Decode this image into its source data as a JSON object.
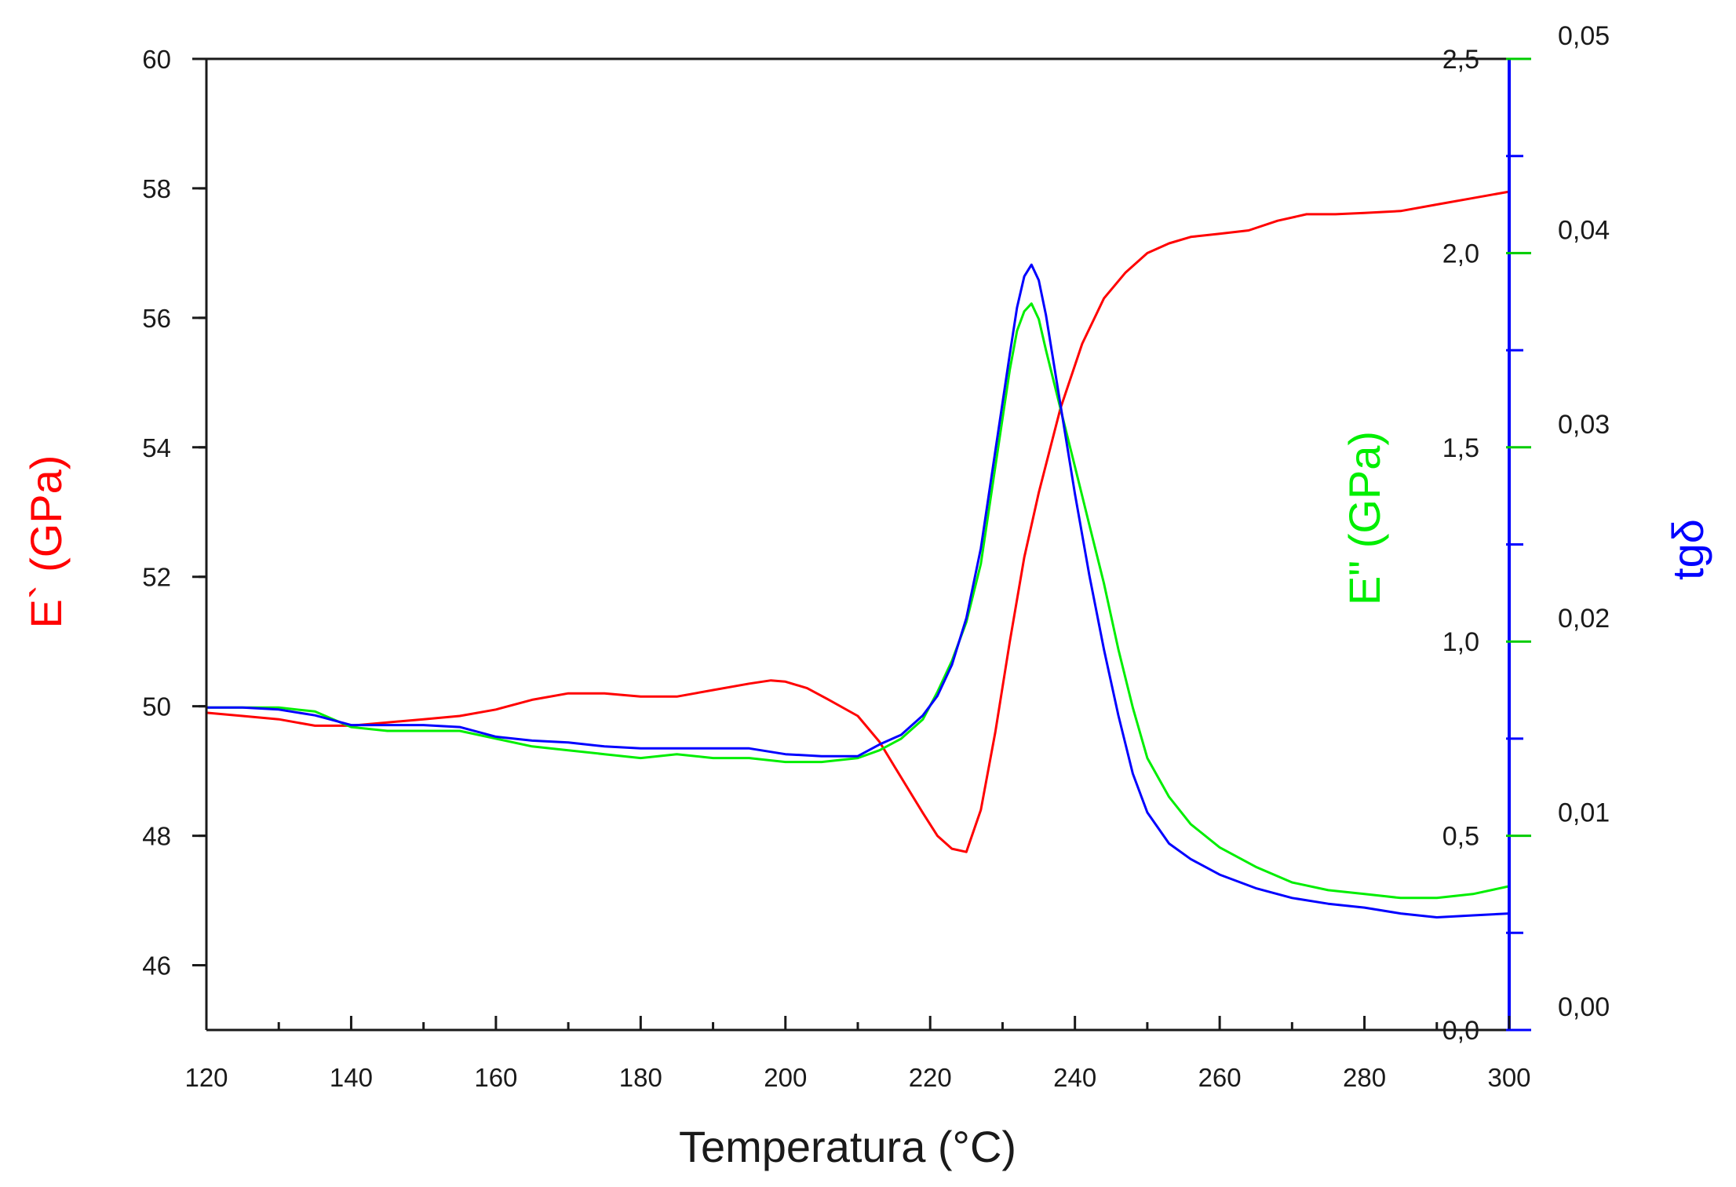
{
  "chart_data": {
    "type": "line",
    "xlabel": "Temperatura (°C)",
    "x_axis": {
      "min": 120,
      "max": 300,
      "ticks": [
        120,
        140,
        160,
        180,
        200,
        220,
        240,
        260,
        280,
        300
      ],
      "tick_labels": [
        "120",
        "140",
        "160",
        "180",
        "200",
        "220",
        "240",
        "260",
        "280",
        "300"
      ]
    },
    "y_axes": [
      {
        "id": "storage",
        "label": "E` (GPa)",
        "color": "#ff0000",
        "side": "left",
        "min": 45,
        "max": 60,
        "ticks": [
          46,
          48,
          50,
          52,
          54,
          56,
          58,
          60
        ],
        "tick_labels": [
          "46",
          "48",
          "50",
          "52",
          "54",
          "56",
          "58",
          "60"
        ]
      },
      {
        "id": "loss",
        "label": "E\" (GPa)",
        "color": "#00ee00",
        "side": "right-inner",
        "min": 0,
        "max": 2.5,
        "ticks": [
          0,
          0.5,
          1.0,
          1.5,
          2.0,
          2.5
        ],
        "tick_labels": [
          "0,0",
          "0,5",
          "1,0",
          "1,5",
          "2,0",
          "2,5"
        ]
      },
      {
        "id": "tan",
        "label": "tgδ",
        "color": "#0000ff",
        "side": "right",
        "min": 0,
        "max": 0.05,
        "ticks": [
          0,
          0.01,
          0.02,
          0.03,
          0.04,
          0.05
        ],
        "tick_labels": [
          "0,00",
          "0,01",
          "0,02",
          "0,03",
          "0,04",
          "0,05"
        ]
      }
    ],
    "series": [
      {
        "name": "E`",
        "axis": "storage",
        "color": "#ff0000",
        "x": [
          120,
          125,
          130,
          135,
          140,
          145,
          150,
          155,
          160,
          165,
          170,
          175,
          180,
          185,
          190,
          195,
          198,
          200,
          203,
          206,
          210,
          213,
          216,
          219,
          221,
          223,
          225,
          227,
          229,
          231,
          233,
          235,
          238,
          241,
          244,
          247,
          250,
          253,
          256,
          260,
          264,
          268,
          272,
          276,
          280,
          285,
          290,
          295,
          300
        ],
        "y": [
          49.9,
          49.85,
          49.8,
          49.7,
          49.7,
          49.75,
          49.8,
          49.85,
          49.95,
          50.1,
          50.2,
          50.2,
          50.15,
          50.15,
          50.25,
          50.35,
          50.4,
          50.38,
          50.28,
          50.1,
          49.85,
          49.45,
          48.9,
          48.35,
          48.0,
          47.8,
          47.75,
          48.4,
          49.6,
          51.0,
          52.3,
          53.3,
          54.6,
          55.6,
          56.3,
          56.7,
          57.0,
          57.15,
          57.25,
          57.3,
          57.35,
          57.5,
          57.6,
          57.6,
          57.62,
          57.65,
          57.75,
          57.85,
          57.95
        ]
      },
      {
        "name": "E\"",
        "axis": "loss",
        "color": "#00ee00",
        "x": [
          120,
          125,
          130,
          135,
          140,
          145,
          150,
          155,
          160,
          165,
          170,
          175,
          180,
          185,
          190,
          195,
          200,
          205,
          210,
          213,
          216,
          219,
          221,
          223,
          225,
          227,
          229,
          231,
          232,
          233,
          234,
          235,
          236,
          238,
          240,
          242,
          244,
          246,
          248,
          250,
          253,
          256,
          260,
          265,
          270,
          275,
          280,
          285,
          290,
          295,
          300
        ],
        "y": [
          0.83,
          0.83,
          0.83,
          0.82,
          0.78,
          0.77,
          0.77,
          0.77,
          0.75,
          0.73,
          0.72,
          0.71,
          0.7,
          0.71,
          0.7,
          0.7,
          0.69,
          0.69,
          0.7,
          0.72,
          0.75,
          0.8,
          0.87,
          0.95,
          1.05,
          1.2,
          1.45,
          1.7,
          1.8,
          1.85,
          1.87,
          1.83,
          1.75,
          1.6,
          1.45,
          1.3,
          1.15,
          0.98,
          0.83,
          0.7,
          0.6,
          0.53,
          0.47,
          0.42,
          0.38,
          0.36,
          0.35,
          0.34,
          0.34,
          0.35,
          0.37
        ]
      },
      {
        "name": "tgδ",
        "axis": "tan",
        "color": "#0000ff",
        "x": [
          120,
          125,
          130,
          135,
          140,
          145,
          150,
          155,
          160,
          165,
          170,
          175,
          180,
          185,
          190,
          195,
          200,
          205,
          210,
          213,
          216,
          219,
          221,
          223,
          225,
          227,
          229,
          231,
          232,
          233,
          234,
          235,
          236,
          238,
          240,
          242,
          244,
          246,
          248,
          250,
          253,
          256,
          260,
          265,
          270,
          275,
          280,
          285,
          290,
          295,
          300
        ],
        "y": [
          0.0166,
          0.0166,
          0.0165,
          0.0162,
          0.0157,
          0.0157,
          0.0157,
          0.0156,
          0.0151,
          0.0149,
          0.0148,
          0.0146,
          0.0145,
          0.0145,
          0.0145,
          0.0145,
          0.0142,
          0.0141,
          0.0141,
          0.0147,
          0.0152,
          0.0162,
          0.0172,
          0.0188,
          0.0212,
          0.0248,
          0.0298,
          0.0348,
          0.0372,
          0.0388,
          0.0394,
          0.0386,
          0.0368,
          0.0322,
          0.0276,
          0.0234,
          0.0196,
          0.0162,
          0.0132,
          0.0112,
          0.0096,
          0.0088,
          0.008,
          0.0073,
          0.0068,
          0.0065,
          0.0063,
          0.006,
          0.0058,
          0.0059,
          0.006
        ]
      }
    ]
  }
}
